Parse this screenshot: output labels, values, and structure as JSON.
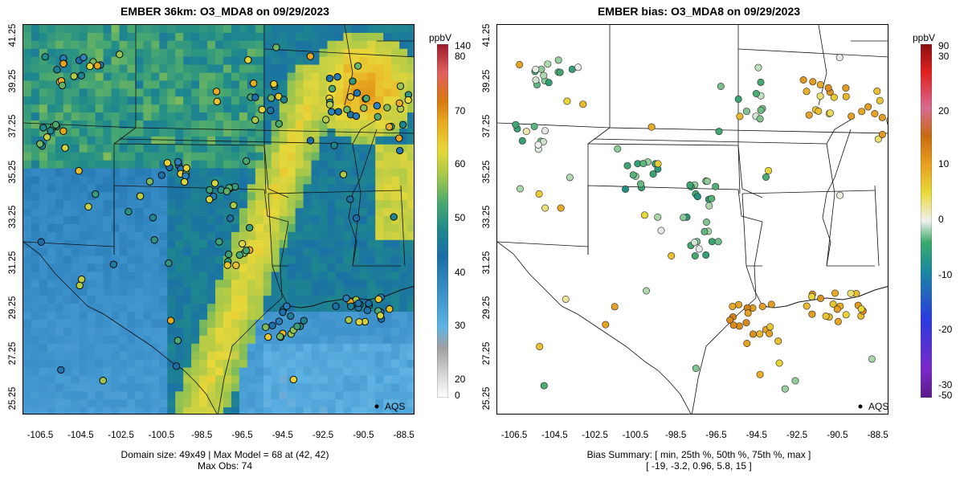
{
  "left_panel": {
    "title": "EMBER 36km: O3_MDA8 on 09/29/2023",
    "caption_line1": "Domain size: 49x49 | Max Model = 68 at (42, 42)",
    "caption_line2": "Max Obs: 74",
    "legend_label": "AQS",
    "colorbar": {
      "unit": "ppbV",
      "ticks": [
        "140",
        "80",
        "70",
        "60",
        "50",
        "40",
        "30",
        "20",
        "0"
      ]
    }
  },
  "right_panel": {
    "title": "EMBER bias: O3_MDA8 on 09/29/2023",
    "caption_line1": "Bias Summary: [ min, 25th %, 50th %, 75th %, max ]",
    "caption_line2": "[ -19,   -3.2,   0.96,   5.8,    15 ]",
    "legend_label": "AQS",
    "colorbar": {
      "unit": "ppbV",
      "ticks": [
        "90",
        "30",
        "20",
        "10",
        "0",
        "-10",
        "-20",
        "-30",
        "-50"
      ]
    }
  },
  "axes": {
    "x_ticks": [
      "-106.5",
      "-104.5",
      "-102.5",
      "-100.5",
      "-98.5",
      "-96.5",
      "-94.5",
      "-92.5",
      "-90.5",
      "-88.5"
    ],
    "y_ticks": [
      "41.25",
      "39.25",
      "37.25",
      "35.25",
      "33.25",
      "31.25",
      "29.25",
      "27.25",
      "25.25"
    ]
  },
  "colors": {
    "model_low": "#4aa6d8",
    "model_mid": "#2f9a8a",
    "model_high": "#e8c93a",
    "model_peak": "#e07a1a",
    "bias_neg": "#3a9a6a",
    "bias_zero": "#e8e8e8",
    "bias_pos": "#e8a020"
  },
  "chart_data": [
    {
      "type": "heatmap",
      "title": "EMBER 36km: O3_MDA8 on 09/29/2023",
      "variable": "O3_MDA8",
      "units": "ppbV",
      "domain_size": "49x49",
      "max_model": 68,
      "max_model_cell": [
        42,
        42
      ],
      "max_obs": 74,
      "xlim": [
        -107.5,
        -88.0
      ],
      "ylim": [
        25.25,
        41.75
      ],
      "colorbar_ticks": [
        0,
        20,
        30,
        40,
        50,
        60,
        70,
        80,
        140
      ],
      "legend": "AQS"
    },
    {
      "type": "scatter",
      "title": "EMBER bias: O3_MDA8 on 09/29/2023",
      "variable": "O3_MDA8 bias",
      "units": "ppbV",
      "bias_summary": {
        "min": -19,
        "p25": -3.2,
        "p50": 0.96,
        "p75": 5.8,
        "max": 15
      },
      "xlim": [
        -107.5,
        -88.0
      ],
      "ylim": [
        25.25,
        41.75
      ],
      "colorbar_ticks": [
        -50,
        -30,
        -20,
        -10,
        0,
        10,
        20,
        30,
        90
      ],
      "legend": "AQS"
    }
  ]
}
